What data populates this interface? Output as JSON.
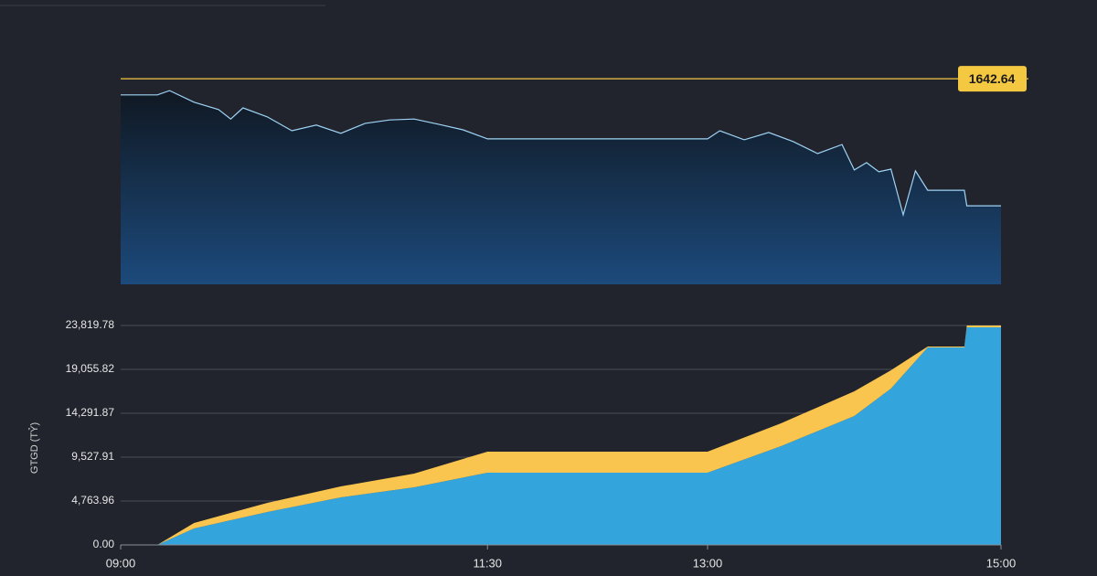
{
  "chart_data": [
    {
      "type": "line",
      "x": [
        "09:00",
        "09:15",
        "09:20",
        "09:30",
        "09:40",
        "09:45",
        "09:50",
        "10:00",
        "10:10",
        "10:20",
        "10:30",
        "10:40",
        "10:50",
        "11:00",
        "11:10",
        "11:20",
        "11:30",
        "13:00",
        "13:05",
        "13:15",
        "13:25",
        "13:35",
        "13:45",
        "13:55",
        "14:00",
        "14:05",
        "14:10",
        "14:15",
        "14:20",
        "14:25",
        "14:30",
        "14:45",
        "14:46",
        "15:00"
      ],
      "series": [
        {
          "color": "#9fd3f5",
          "values": [
            1638.9,
            1638.9,
            1639.9,
            1637.2,
            1635.5,
            1633.3,
            1635.9,
            1633.8,
            1630.6,
            1631.9,
            1630.0,
            1632.3,
            1633.1,
            1633.3,
            1632.1,
            1630.8,
            1628.7,
            1628.7,
            1630.6,
            1628.5,
            1630.2,
            1628.1,
            1625.3,
            1627.4,
            1621.5,
            1623.2,
            1621.1,
            1621.7,
            1611.1,
            1621.3,
            1616.8,
            1616.8,
            1613.2,
            1613.2
          ]
        }
      ],
      "reference_line": 1642.64,
      "reference_color": "#f5c842",
      "xlim": [
        "09:00",
        "15:00"
      ],
      "ylim": [
        1595,
        1645
      ]
    },
    {
      "type": "stacked_area",
      "y_label": "GTGD (TỶ)",
      "x": [
        "09:00",
        "09:15",
        "09:30",
        "10:00",
        "10:30",
        "11:00",
        "11:30",
        "13:00",
        "13:30",
        "14:00",
        "14:15",
        "14:30",
        "14:45",
        "14:46",
        "15:00"
      ],
      "series": [
        {
          "color": "#34a4dc",
          "values": [
            0,
            0,
            1786,
            3573,
            5161,
            6253,
            7841,
            7841,
            10719,
            13994,
            16971,
            21438,
            21438,
            23620,
            23620
          ]
        },
        {
          "color": "#f9c54f",
          "values": [
            0,
            0,
            596,
            993,
            1191,
            1489,
            2283,
            2283,
            2481,
            2680,
            1986,
            99,
            99,
            200,
            200
          ]
        }
      ],
      "xlim": [
        "09:00",
        "15:00"
      ],
      "xticks": [
        "09:00",
        "11:30",
        "13:00",
        "15:00"
      ],
      "ylim": [
        0,
        23819.78
      ],
      "yticks": [
        {
          "value": 0,
          "label": "0.00"
        },
        {
          "value": 4763.96,
          "label": "4,763.96"
        },
        {
          "value": 9527.91,
          "label": "9,527.91"
        },
        {
          "value": 14291.87,
          "label": "14,291.87"
        },
        {
          "value": 19055.82,
          "label": "19,055.82"
        },
        {
          "value": 23819.78,
          "label": "23,819.78"
        }
      ],
      "grid": true
    }
  ]
}
